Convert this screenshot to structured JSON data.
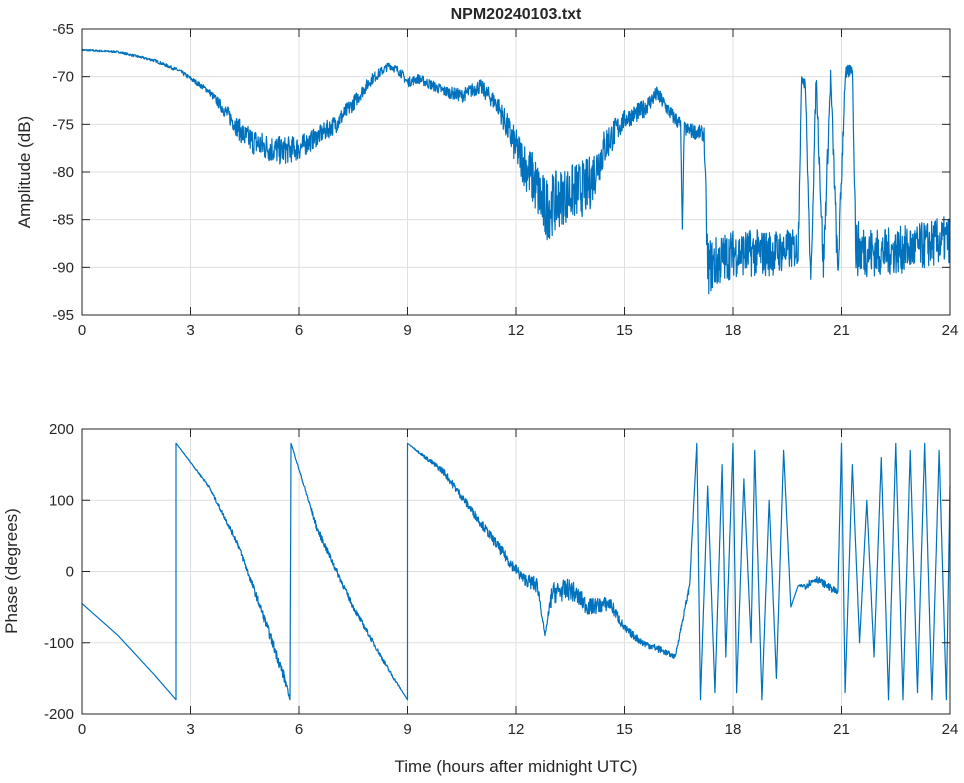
{
  "chart_data": [
    {
      "type": "line",
      "title": "NPM20240103.txt",
      "xlabel": "",
      "ylabel": "Amplitude (dB)",
      "xlim": [
        0,
        24
      ],
      "ylim": [
        -95,
        -65
      ],
      "xticks": [
        "0",
        "3",
        "6",
        "9",
        "12",
        "15",
        "18",
        "21",
        "24"
      ],
      "yticks": [
        "-65",
        "-70",
        "-75",
        "-80",
        "-85",
        "-90",
        "-95"
      ],
      "grid": true,
      "color": "#0072BD",
      "series_note": "points: [hours, dB, noise half-range dB]",
      "points": [
        [
          0,
          -67.2,
          0.1
        ],
        [
          1,
          -67.4,
          0.1
        ],
        [
          2,
          -68.3,
          0.15
        ],
        [
          2.7,
          -69.4,
          0.2
        ],
        [
          3.5,
          -71.5,
          0.3
        ],
        [
          4,
          -73.8,
          0.8
        ],
        [
          4.5,
          -76.3,
          1.3
        ],
        [
          5,
          -77.3,
          1.5
        ],
        [
          5.5,
          -77.8,
          1.5
        ],
        [
          6,
          -77.5,
          1.3
        ],
        [
          6.5,
          -76.3,
          1
        ],
        [
          7,
          -75,
          1
        ],
        [
          7.5,
          -72.8,
          0.8
        ],
        [
          8,
          -70.3,
          0.6
        ],
        [
          8.5,
          -68.8,
          0.4
        ],
        [
          8.8,
          -69.5,
          0.5
        ],
        [
          9,
          -70.6,
          0.5
        ],
        [
          9.3,
          -70.2,
          0.5
        ],
        [
          10,
          -71.5,
          0.6
        ],
        [
          10.5,
          -72,
          0.7
        ],
        [
          11,
          -71,
          0.8
        ],
        [
          11.5,
          -73,
          1
        ],
        [
          12,
          -77.5,
          2
        ],
        [
          12.5,
          -81,
          3
        ],
        [
          12.8,
          -84,
          3.5
        ],
        [
          13.3,
          -82.5,
          3
        ],
        [
          14,
          -81.5,
          3
        ],
        [
          14.5,
          -77,
          2
        ],
        [
          15,
          -74.5,
          1
        ],
        [
          15.5,
          -73.5,
          1
        ],
        [
          15.9,
          -71.8,
          0.8
        ],
        [
          16.3,
          -74,
          0.8
        ],
        [
          16.55,
          -75,
          0.8
        ],
        [
          16.6,
          -86,
          0
        ],
        [
          16.65,
          -75.5,
          0.8
        ],
        [
          17.2,
          -76,
          0.8
        ],
        [
          17.3,
          -90,
          3
        ],
        [
          18,
          -88.5,
          2.5
        ],
        [
          19,
          -88.5,
          2.5
        ],
        [
          19.8,
          -88,
          2
        ],
        [
          19.9,
          -70,
          0.5
        ],
        [
          20,
          -70.5,
          1
        ],
        [
          20.15,
          -92,
          1
        ],
        [
          20.3,
          -70,
          1
        ],
        [
          20.5,
          -90,
          2
        ],
        [
          20.7,
          -70,
          1
        ],
        [
          20.9,
          -91,
          2
        ],
        [
          21.1,
          -70,
          1
        ],
        [
          21.3,
          -69,
          0.5
        ],
        [
          21.4,
          -88,
          3
        ],
        [
          22,
          -88.5,
          2.5
        ],
        [
          23,
          -88,
          2.5
        ],
        [
          24,
          -87,
          2.5
        ]
      ]
    },
    {
      "type": "line",
      "title": "",
      "xlabel": "Time (hours after midnight UTC)",
      "ylabel": "Phase (degrees)",
      "xlim": [
        0,
        24
      ],
      "ylim": [
        -200,
        200
      ],
      "xticks": [
        "0",
        "3",
        "6",
        "9",
        "12",
        "15",
        "18",
        "21",
        "24"
      ],
      "yticks": [
        "200",
        "100",
        "0",
        "-100",
        "-200"
      ],
      "grid": true,
      "color": "#0072BD",
      "series_note": "points: [hours, degrees, noise half-range degrees]",
      "points": [
        [
          0,
          -45,
          0
        ],
        [
          1,
          -90,
          0
        ],
        [
          2,
          -145,
          0
        ],
        [
          2.6,
          -180,
          0
        ],
        [
          2.6,
          180,
          0
        ],
        [
          3.5,
          120,
          2
        ],
        [
          4.3,
          40,
          4
        ],
        [
          5,
          -60,
          6
        ],
        [
          5.6,
          -150,
          8
        ],
        [
          5.75,
          -180,
          0
        ],
        [
          5.78,
          180,
          0
        ],
        [
          6.5,
          60,
          5
        ],
        [
          7.5,
          -50,
          4
        ],
        [
          8.5,
          -140,
          3
        ],
        [
          9,
          -180,
          0
        ],
        [
          9,
          180,
          0
        ],
        [
          10,
          140,
          5
        ],
        [
          11,
          70,
          6
        ],
        [
          11.8,
          15,
          8
        ],
        [
          12.2,
          -10,
          8
        ],
        [
          12.6,
          -20,
          12
        ],
        [
          12.8,
          -90,
          0
        ],
        [
          13,
          -30,
          15
        ],
        [
          13.5,
          -25,
          15
        ],
        [
          14,
          -50,
          12
        ],
        [
          14.6,
          -45,
          10
        ],
        [
          15,
          -80,
          6
        ],
        [
          15.5,
          -100,
          5
        ],
        [
          16,
          -110,
          5
        ],
        [
          16.4,
          -120,
          3
        ],
        [
          16.8,
          -20,
          5
        ],
        [
          17,
          180,
          0
        ],
        [
          17.1,
          -180,
          0
        ],
        [
          17.3,
          120,
          0
        ],
        [
          17.5,
          -170,
          0
        ],
        [
          17.7,
          150,
          0
        ],
        [
          17.8,
          -120,
          0
        ],
        [
          18,
          180,
          0
        ],
        [
          18.1,
          -170,
          0
        ],
        [
          18.3,
          130,
          0
        ],
        [
          18.5,
          -100,
          0
        ],
        [
          18.6,
          170,
          0
        ],
        [
          18.8,
          -180,
          0
        ],
        [
          19,
          100,
          0
        ],
        [
          19.2,
          -150,
          0
        ],
        [
          19.4,
          170,
          0
        ],
        [
          19.6,
          -50,
          0
        ],
        [
          19.8,
          -20,
          0
        ],
        [
          20,
          -20,
          5
        ],
        [
          20.3,
          -10,
          5
        ],
        [
          20.6,
          -20,
          5
        ],
        [
          20.9,
          -30,
          5
        ],
        [
          21,
          180,
          0
        ],
        [
          21.1,
          -170,
          0
        ],
        [
          21.3,
          150,
          0
        ],
        [
          21.5,
          -100,
          0
        ],
        [
          21.7,
          100,
          0
        ],
        [
          21.9,
          -120,
          0
        ],
        [
          22.1,
          160,
          0
        ],
        [
          22.3,
          -180,
          0
        ],
        [
          22.5,
          180,
          0
        ],
        [
          22.7,
          -180,
          0
        ],
        [
          22.9,
          170,
          0
        ],
        [
          23.1,
          -170,
          0
        ],
        [
          23.3,
          180,
          0
        ],
        [
          23.5,
          -180,
          0
        ],
        [
          23.7,
          170,
          0
        ],
        [
          23.9,
          -180,
          0
        ],
        [
          24,
          120,
          0
        ]
      ]
    }
  ]
}
